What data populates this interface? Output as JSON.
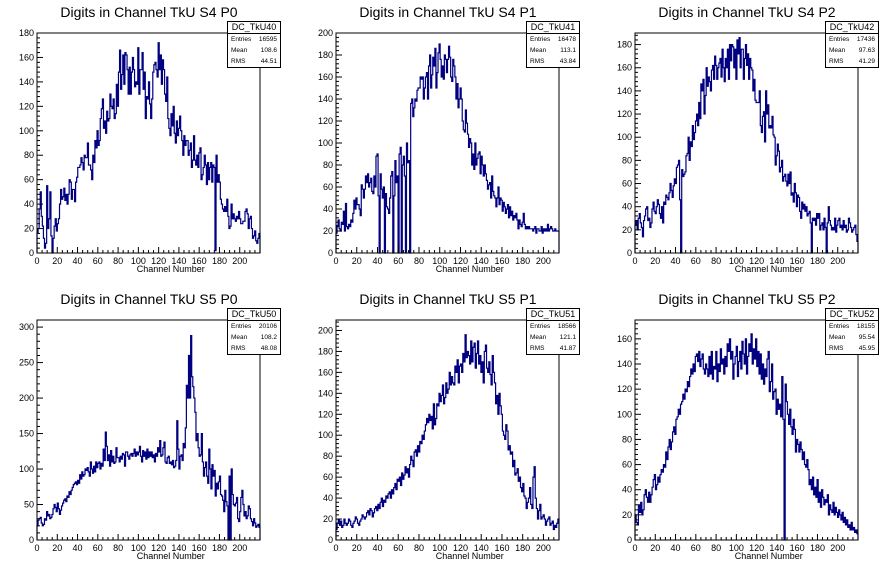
{
  "chart_data": [
    {
      "type": "histogram",
      "title": "Digits in Channel TkU S4 P0",
      "xlabel": "Channel Number",
      "xlim": [
        0,
        220
      ],
      "ylim": [
        0,
        180
      ],
      "xticks": [
        0,
        20,
        40,
        60,
        80,
        100,
        120,
        140,
        160,
        180,
        200
      ],
      "yticks": [
        0,
        20,
        40,
        60,
        80,
        100,
        120,
        140,
        160,
        180
      ],
      "legend": {
        "name": "DC_TkU40",
        "entries_label": "Entries",
        "entries": "16595",
        "mean_label": "Mean",
        "mean": "108.6",
        "rms_label": "RMS",
        "rms": "44.51"
      },
      "values": [
        16,
        20,
        36,
        50,
        30,
        22,
        12,
        4,
        8,
        55,
        20,
        28,
        50,
        14,
        0,
        12,
        22,
        28,
        18,
        24,
        28,
        40,
        52,
        44,
        46,
        53,
        43,
        48,
        40,
        48,
        60,
        58,
        44,
        52,
        52,
        42,
        58,
        62,
        70,
        70,
        72,
        78,
        74,
        68,
        80,
        78,
        78,
        90,
        72,
        72,
        68,
        60,
        80,
        74,
        92,
        86,
        100,
        88,
        92,
        110,
        118,
        126,
        102,
        108,
        98,
        116,
        108,
        110,
        130,
        120,
        118,
        126,
        110,
        114,
        138,
        120,
        148,
        166,
        134,
        146,
        162,
        138,
        164,
        162,
        150,
        130,
        152,
        130,
        148,
        160,
        150,
        136,
        140,
        138,
        168,
        130,
        150,
        150,
        164,
        134,
        148,
        110,
        128,
        126,
        140,
        122,
        110,
        126,
        148,
        154,
        156,
        150,
        144,
        172,
        150,
        162,
        138,
        158,
        150,
        130,
        124,
        144,
        110,
        102,
        96,
        114,
        104,
        120,
        98,
        90,
        108,
        96,
        102,
        112,
        100,
        92,
        80,
        96,
        88,
        92,
        92,
        80,
        84,
        90,
        70,
        76,
        96,
        76,
        72,
        80,
        70,
        82,
        86,
        60,
        64,
        70,
        80,
        72,
        56,
        74,
        60,
        70,
        74,
        58,
        72,
        70,
        2,
        80,
        58,
        64,
        58,
        44,
        40,
        36,
        34,
        38,
        34,
        44,
        30,
        20,
        22,
        40,
        28,
        32,
        28,
        26,
        30,
        28,
        34,
        28,
        24,
        24,
        26,
        26,
        34,
        36,
        32,
        20,
        28,
        30,
        20,
        12,
        14,
        18,
        10,
        8,
        12,
        16
      ]
    },
    {
      "type": "histogram",
      "title": "Digits in Channel TkU S4 P1",
      "xlabel": "Channel Number",
      "xlim": [
        0,
        215
      ],
      "ylim": [
        0,
        200
      ],
      "xticks": [
        0,
        20,
        40,
        60,
        80,
        100,
        120,
        140,
        160,
        180,
        200
      ],
      "yticks": [
        0,
        20,
        40,
        60,
        80,
        100,
        120,
        140,
        160,
        180,
        200
      ],
      "legend": {
        "name": "DC_TkU41",
        "entries_label": "Entries",
        "entries": "16478",
        "mean_label": "Mean",
        "mean": "113.1",
        "rms_label": "RMS",
        "rms": "43.84"
      },
      "values": [
        18,
        25,
        30,
        22,
        20,
        28,
        26,
        38,
        20,
        45,
        24,
        22,
        26,
        24,
        30,
        28,
        36,
        48,
        40,
        50,
        44,
        44,
        40,
        34,
        62,
        58,
        50,
        58,
        70,
        64,
        72,
        60,
        64,
        68,
        56,
        54,
        70,
        60,
        88,
        90,
        52,
        0,
        72,
        58,
        50,
        60,
        0,
        54,
        42,
        40,
        36,
        50,
        70,
        74,
        0,
        52,
        84,
        64,
        70,
        0,
        90,
        96,
        0,
        80,
        88,
        70,
        0,
        100,
        82,
        84,
        0,
        136,
        140,
        124,
        132,
        140,
        138,
        148,
        150,
        150,
        160,
        158,
        160,
        140,
        150,
        160,
        164,
        140,
        170,
        180,
        150,
        162,
        178,
        170,
        186,
        150,
        164,
        182,
        190,
        176,
        160,
        170,
        158,
        180,
        176,
        164,
        176,
        188,
        178,
        160,
        156,
        176,
        170,
        160,
        140,
        154,
        132,
        140,
        150,
        140,
        120,
        112,
        110,
        130,
        118,
        108,
        96,
        104,
        100,
        80,
        90,
        76,
        100,
        80,
        86,
        90,
        92,
        72,
        88,
        80,
        70,
        80,
        72,
        66,
        58,
        62,
        64,
        50,
        70,
        56,
        52,
        50,
        42,
        50,
        60,
        44,
        50,
        48,
        38,
        46,
        42,
        36,
        40,
        44,
        32,
        42,
        34,
        38,
        30,
        34,
        32,
        36,
        30,
        22,
        30,
        26,
        24,
        28,
        36,
        26,
        22,
        24,
        22,
        24,
        22,
        22,
        22,
        20,
        22,
        24,
        18,
        22,
        22,
        20,
        20,
        24,
        18,
        22,
        20,
        22,
        20,
        26,
        20,
        22,
        24,
        22,
        20,
        20,
        22,
        20,
        20,
        20
      ]
    },
    {
      "type": "histogram",
      "title": "Digits in Channel TkU S4 P2",
      "xlabel": "Channel Number",
      "xlim": [
        0,
        220
      ],
      "ylim": [
        0,
        190
      ],
      "xticks": [
        0,
        20,
        40,
        60,
        80,
        100,
        120,
        140,
        160,
        180,
        200
      ],
      "yticks": [
        0,
        20,
        40,
        60,
        80,
        100,
        120,
        140,
        160,
        180
      ],
      "legend": {
        "name": "DC_TkU42",
        "entries_label": "Entries",
        "entries": "17436",
        "mean_label": "Mean",
        "mean": "97.63",
        "rms_label": "RMS",
        "rms": "41.29"
      },
      "values": [
        24,
        28,
        20,
        30,
        34,
        26,
        22,
        14,
        28,
        32,
        38,
        40,
        28,
        30,
        22,
        26,
        38,
        44,
        36,
        34,
        40,
        46,
        42,
        34,
        30,
        40,
        26,
        44,
        42,
        50,
        48,
        46,
        52,
        60,
        54,
        48,
        58,
        64,
        60,
        74,
        76,
        80,
        46,
        0,
        72,
        66,
        68,
        70,
        84,
        86,
        100,
        80,
        96,
        92,
        110,
        98,
        104,
        114,
        120,
        110,
        130,
        116,
        146,
        140,
        150,
        120,
        136,
        160,
        144,
        152,
        148,
        140,
        158,
        162,
        150,
        170,
        162,
        150,
        160,
        164,
        168,
        152,
        176,
        160,
        148,
        168,
        160,
        176,
        150,
        180,
        166,
        180,
        178,
        160,
        176,
        150,
        184,
        172,
        186,
        160,
        176,
        176,
        150,
        168,
        180,
        162,
        172,
        150,
        168,
        160,
        158,
        140,
        150,
        132,
        130,
        130,
        130,
        140,
        110,
        104,
        118,
        122,
        96,
        140,
        120,
        128,
        108,
        110,
        108,
        118,
        102,
        100,
        76,
        84,
        94,
        88,
        70,
        74,
        80,
        62,
        66,
        68,
        62,
        58,
        68,
        60,
        70,
        50,
        52,
        44,
        60,
        52,
        40,
        50,
        48,
        36,
        30,
        44,
        38,
        42,
        36,
        40,
        32,
        34,
        36,
        26,
        0,
        30,
        28,
        30,
        24,
        34,
        30,
        34,
        20,
        24,
        26,
        20,
        30,
        22,
        0,
        26,
        40,
        28,
        24,
        20,
        22,
        20,
        30,
        18,
        24,
        28,
        30,
        22,
        24,
        20,
        28,
        22,
        24,
        18,
        20,
        30,
        26,
        22,
        18,
        20,
        22,
        24,
        16,
        10
      ]
    },
    {
      "type": "histogram",
      "title": "Digits in Channel TkU S5 P0",
      "xlabel": "Channel Number",
      "xlim": [
        0,
        220
      ],
      "ylim": [
        0,
        310
      ],
      "xticks": [
        0,
        20,
        40,
        60,
        80,
        100,
        120,
        140,
        160,
        180,
        200
      ],
      "yticks": [
        0,
        50,
        100,
        150,
        200,
        250,
        300
      ],
      "legend": {
        "name": "DC_TkU50",
        "entries_label": "Entries",
        "entries": "20106",
        "mean_label": "Mean",
        "mean": "108.2",
        "rms_label": "RMS",
        "rms": "48.08"
      },
      "values": [
        20,
        28,
        30,
        32,
        24,
        20,
        22,
        30,
        28,
        40,
        34,
        36,
        30,
        32,
        36,
        44,
        50,
        46,
        40,
        52,
        44,
        36,
        42,
        48,
        52,
        56,
        58,
        54,
        62,
        60,
        68,
        64,
        70,
        74,
        78,
        80,
        82,
        78,
        84,
        80,
        92,
        86,
        96,
        90,
        92,
        100,
        98,
        102,
        96,
        90,
        110,
        100,
        94,
        104,
        96,
        110,
        102,
        108,
        110,
        100,
        108,
        104,
        128,
        112,
        152,
        132,
        112,
        120,
        104,
        126,
        110,
        118,
        108,
        110,
        130,
        116,
        116,
        110,
        118,
        114,
        122,
        120,
        104,
        124,
        124,
        118,
        114,
        120,
        122,
        118,
        122,
        128,
        118,
        124,
        120,
        124,
        132,
        118,
        110,
        126,
        118,
        124,
        114,
        128,
        116,
        124,
        118,
        124,
        116,
        120,
        110,
        122,
        118,
        130,
        124,
        140,
        118,
        120,
        130,
        138,
        110,
        108,
        116,
        118,
        108,
        110,
        106,
        112,
        102,
        104,
        112,
        168,
        128,
        100,
        118,
        120,
        112,
        136,
        130,
        158,
        218,
        200,
        260,
        200,
        288,
        230,
        216,
        200,
        180,
        140,
        150,
        130,
        118,
        120,
        150,
        110,
        90,
        102,
        110,
        90,
        80,
        128,
        100,
        72,
        106,
        90,
        98,
        62,
        80,
        72,
        82,
        90,
        64,
        62,
        56,
        40,
        70,
        54,
        48,
        0,
        90,
        0,
        100,
        64,
        50,
        48,
        52,
        60,
        30,
        26,
        40,
        60,
        70,
        50,
        34,
        40,
        30,
        34,
        48,
        44,
        30,
        26,
        20,
        30,
        24,
        18,
        20,
        22,
        18
      ]
    },
    {
      "type": "histogram",
      "title": "Digits in Channel TkU S5 P1",
      "xlabel": "Channel Number",
      "xlim": [
        0,
        215
      ],
      "ylim": [
        0,
        210
      ],
      "xticks": [
        0,
        20,
        40,
        60,
        80,
        100,
        120,
        140,
        160,
        180,
        200
      ],
      "yticks": [
        0,
        20,
        40,
        60,
        80,
        100,
        120,
        140,
        160,
        180,
        200
      ],
      "legend": {
        "name": "DC_TkU51",
        "entries_label": "Entries",
        "entries": "18566",
        "mean_label": "Mean",
        "mean": "121.1",
        "rms_label": "RMS",
        "rms": "41.87"
      },
      "values": [
        10,
        16,
        20,
        14,
        18,
        12,
        14,
        20,
        16,
        14,
        16,
        20,
        18,
        14,
        12,
        16,
        18,
        22,
        20,
        16,
        14,
        18,
        20,
        24,
        22,
        20,
        22,
        26,
        28,
        24,
        30,
        28,
        22,
        26,
        30,
        32,
        28,
        34,
        30,
        36,
        40,
        32,
        38,
        36,
        42,
        40,
        44,
        46,
        40,
        48,
        44,
        50,
        54,
        48,
        58,
        56,
        60,
        52,
        64,
        58,
        62,
        70,
        64,
        68,
        60,
        72,
        80,
        76,
        70,
        84,
        86,
        80,
        90,
        84,
        94,
        92,
        100,
        96,
        104,
        110,
        116,
        112,
        120,
        114,
        118,
        106,
        130,
        110,
        116,
        130,
        128,
        140,
        132,
        138,
        148,
        130,
        136,
        150,
        140,
        144,
        160,
        148,
        156,
        150,
        148,
        166,
        160,
        172,
        150,
        166,
        168,
        160,
        178,
        170,
        196,
        174,
        180,
        176,
        168,
        190,
        170,
        184,
        188,
        164,
        178,
        190,
        168,
        176,
        160,
        170,
        150,
        180,
        186,
        164,
        160,
        170,
        158,
        148,
        176,
        160,
        150,
        130,
        138,
        120,
        140,
        128,
        120,
        104,
        100,
        96,
        110,
        104,
        86,
        90,
        82,
        84,
        70,
        76,
        62,
        64,
        68,
        56,
        60,
        50,
        46,
        54,
        42,
        40,
        30,
        36,
        40,
        50,
        34,
        30,
        60,
        70,
        40,
        30,
        20,
        28,
        34,
        20,
        22,
        24,
        20,
        14,
        18,
        20,
        22,
        14,
        16,
        18,
        10,
        14,
        12,
        16,
        20
      ]
    },
    {
      "type": "histogram",
      "title": "Digits in Channel TkU S5 P2",
      "xlabel": "Channel Number",
      "xlim": [
        0,
        220
      ],
      "ylim": [
        0,
        175
      ],
      "xticks": [
        0,
        20,
        40,
        60,
        80,
        100,
        120,
        140,
        160,
        180,
        200
      ],
      "yticks": [
        0,
        20,
        40,
        60,
        80,
        100,
        120,
        140,
        160
      ],
      "legend": {
        "name": "DC_TkU52",
        "entries_label": "Entries",
        "entries": "18155",
        "mean_label": "Mean",
        "mean": "95.54",
        "rms_label": "RMS",
        "rms": "45.95"
      },
      "values": [
        20,
        14,
        12,
        28,
        22,
        30,
        20,
        24,
        36,
        40,
        34,
        30,
        38,
        30,
        36,
        42,
        48,
        52,
        40,
        44,
        50,
        46,
        52,
        56,
        54,
        60,
        58,
        70,
        64,
        74,
        80,
        72,
        78,
        86,
        90,
        84,
        96,
        98,
        104,
        100,
        108,
        110,
        116,
        112,
        120,
        118,
        126,
        122,
        130,
        136,
        132,
        140,
        134,
        146,
        148,
        142,
        150,
        138,
        144,
        148,
        136,
        132,
        140,
        136,
        130,
        146,
        132,
        150,
        128,
        138,
        136,
        150,
        126,
        140,
        134,
        152,
        140,
        144,
        132,
        146,
        138,
        156,
        150,
        160,
        144,
        150,
        128,
        140,
        146,
        154,
        130,
        142,
        150,
        136,
        158,
        148,
        140,
        160,
        132,
        146,
        156,
        150,
        164,
        140,
        152,
        144,
        160,
        138,
        150,
        132,
        148,
        128,
        140,
        124,
        136,
        130,
        144,
        150,
        118,
        126,
        140,
        112,
        118,
        120,
        100,
        112,
        104,
        108,
        98,
        130,
        96,
        0,
        124,
        110,
        100,
        92,
        104,
        90,
        84,
        96,
        88,
        70,
        80,
        76,
        70,
        78,
        72,
        64,
        70,
        60,
        58,
        64,
        56,
        44,
        48,
        40,
        50,
        36,
        42,
        34,
        48,
        30,
        38,
        26,
        40,
        34,
        28,
        32,
        30,
        36,
        20,
        28,
        24,
        22,
        30,
        20,
        26,
        22,
        18,
        24,
        20,
        16,
        22,
        14,
        18,
        12,
        16,
        10,
        12,
        8,
        14,
        8,
        10,
        6,
        8,
        5
      ]
    }
  ]
}
